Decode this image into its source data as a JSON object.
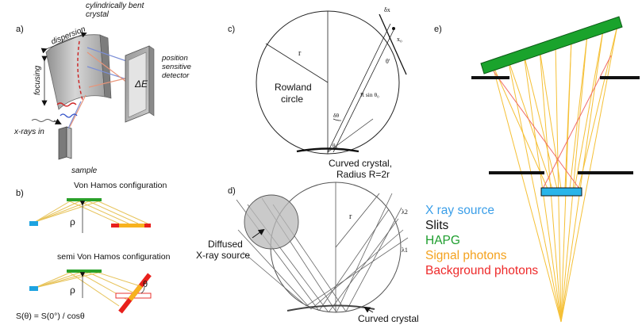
{
  "panels": {
    "a": {
      "letter": "a)",
      "crystal": "cylindrically bent\ncrystal",
      "dispersion": "dispersion",
      "focusing": "focusing",
      "detector": "position\nsensitive\ndetector",
      "delta_e": "ΔE",
      "xrays": "x-rays in",
      "sample": "sample"
    },
    "b": {
      "letter": "b)",
      "title1": "Von Hamos configuration",
      "rho": "ρ",
      "title2": "semi Von Hamos configuration",
      "theta": "θ",
      "formula": "S(θ) = S(0°) / cosθ"
    },
    "c": {
      "letter": "c)",
      "r": "r",
      "rowland": "Rowland\ncircle",
      "dx": "δx",
      "x0": "x₀",
      "theta_prime": "θ'",
      "rsin": "R sin θ₀",
      "dtheta": "δθ",
      "theta0": "θ₀",
      "crystal": "Curved crystal,\nRadius R=2r"
    },
    "d": {
      "letter": "d)",
      "r": "r",
      "lambda2": "λ2",
      "lambda1": "λ1",
      "source": "Diffused\nX-ray source",
      "crystal": "Curved crystal"
    },
    "e": {
      "letter": "e)",
      "legend": [
        {
          "label": "X ray source",
          "color": "#3a9ee8"
        },
        {
          "label": "Slits",
          "color": "#111111"
        },
        {
          "label": "HAPG",
          "color": "#1e9e2e"
        },
        {
          "label": "Signal photons",
          "color": "#f4a21e"
        },
        {
          "label": "Background photons",
          "color": "#ee2a2a"
        }
      ]
    }
  },
  "colors": {
    "hapg": "#1aa32c",
    "source": "#29b5ea",
    "signal": "#f5c036",
    "background": "#ef6a6a",
    "vh_crystal": "#2aa02a",
    "vh_source": "#1ea3e0",
    "vh_detector_red": "#e8201c",
    "vh_detector_yellow": "#f7b21e"
  }
}
